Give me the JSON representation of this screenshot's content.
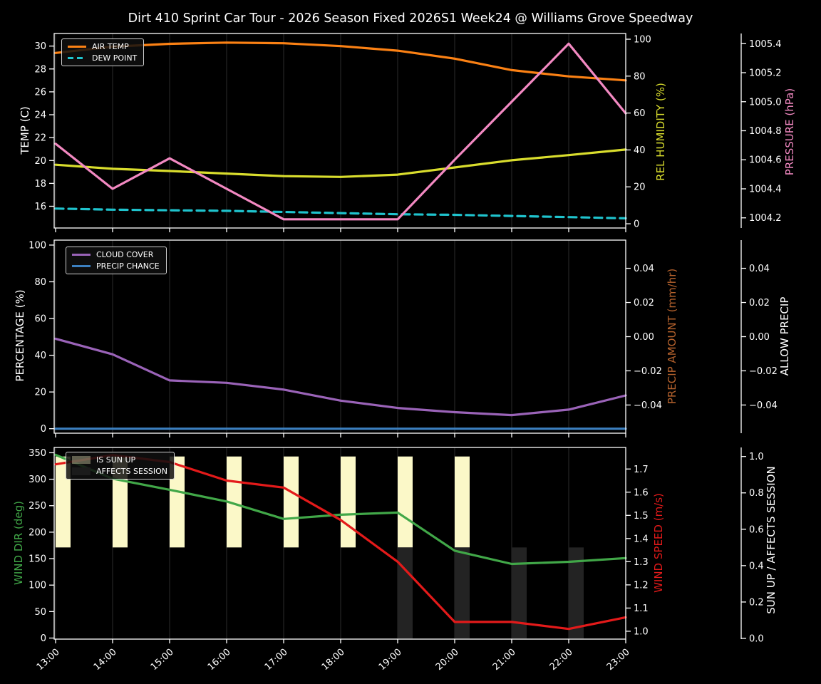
{
  "title": "Dirt 410 Sprint Car Tour - 2026 Season Fixed 2026S1 Week24 @ Williams Grove Speedway",
  "figure": {
    "bg": "#000000",
    "fg": "#ffffff",
    "grid": "#2d2d2d"
  },
  "x_axis": {
    "hours": [
      13,
      14,
      15,
      16,
      17,
      18,
      19,
      20,
      21,
      22,
      23
    ],
    "labels": [
      "13:00",
      "14:00",
      "15:00",
      "16:00",
      "17:00",
      "18:00",
      "19:00",
      "20:00",
      "21:00",
      "22:00",
      "23:00"
    ]
  },
  "chart_data": [
    {
      "type": "line",
      "panel": "temperature",
      "axes": {
        "left": {
          "label": "TEMP (C)",
          "color": "#ffffff",
          "range": [
            14.1,
            31.1
          ],
          "ticks": [
            {
              "v": 16,
              "label": "16"
            },
            {
              "v": 18,
              "label": "18"
            },
            {
              "v": 20,
              "label": "20"
            },
            {
              "v": 22,
              "label": "22"
            },
            {
              "v": 24,
              "label": "24"
            },
            {
              "v": 26,
              "label": "26"
            },
            {
              "v": 28,
              "label": "28"
            },
            {
              "v": 30,
              "label": "30"
            }
          ]
        },
        "right1": {
          "label": "REL HUMIDITY (%)",
          "color": "#d9dd2d",
          "range": [
            -2.3,
            103.1
          ],
          "ticks": [
            {
              "v": 0,
              "label": "0"
            },
            {
              "v": 20,
              "label": "20"
            },
            {
              "v": 40,
              "label": "40"
            },
            {
              "v": 60,
              "label": "60"
            },
            {
              "v": 80,
              "label": "80"
            },
            {
              "v": 100,
              "label": "100"
            }
          ]
        },
        "right2": {
          "label": "PRESSURE (hPa)",
          "color": "#f389c2",
          "range": [
            1004.13,
            1005.47
          ],
          "ticks": [
            {
              "v": 1004.2,
              "label": "1004.2"
            },
            {
              "v": 1004.4,
              "label": "1004.4"
            },
            {
              "v": 1004.6,
              "label": "1004.6"
            },
            {
              "v": 1004.8,
              "label": "1004.8"
            },
            {
              "v": 1005.0,
              "label": "1005.0"
            },
            {
              "v": 1005.2,
              "label": "1005.2"
            },
            {
              "v": 1005.4,
              "label": "1005.4"
            }
          ]
        }
      },
      "series": [
        {
          "name": "AIR TEMP",
          "axis": "left",
          "color": "#fb8114",
          "dash": false,
          "values": [
            29.4,
            29.95,
            30.2,
            30.3,
            30.25,
            30.0,
            29.6,
            28.9,
            27.9,
            27.35,
            27.0
          ]
        },
        {
          "name": "DEW POINT",
          "axis": "left",
          "color": "#1fc3cd",
          "dash": true,
          "values": [
            15.8,
            15.7,
            15.65,
            15.6,
            15.5,
            15.4,
            15.3,
            15.25,
            15.15,
            15.05,
            14.95
          ]
        },
        {
          "name": "REL HUMIDITY",
          "axis": "right1",
          "color": "#d9dd2d",
          "dash": false,
          "values": [
            32,
            29.8,
            28.6,
            27.2,
            25.8,
            25.4,
            26.6,
            30.5,
            34.4,
            37.2,
            40.2
          ]
        },
        {
          "name": "PRESSURE",
          "axis": "right2",
          "color": "#f389c2",
          "dash": false,
          "values": [
            1004.71,
            1004.4,
            1004.61,
            1004.4,
            1004.19,
            1004.19,
            1004.19,
            1004.6,
            1005.0,
            1005.4,
            1004.92
          ]
        }
      ],
      "legend": [
        {
          "label": "AIR TEMP",
          "swatch": "line",
          "color": "#fb8114"
        },
        {
          "label": "DEW POINT",
          "swatch": "dashed-line",
          "color": "#1fc3cd"
        }
      ]
    },
    {
      "type": "line",
      "panel": "percentage",
      "axes": {
        "left": {
          "label": "PERCENTAGE (%)",
          "color": "#ffffff",
          "range": [
            -2.45,
            102.7
          ],
          "ticks": [
            {
              "v": 0,
              "label": "0"
            },
            {
              "v": 20,
              "label": "20"
            },
            {
              "v": 40,
              "label": "40"
            },
            {
              "v": 60,
              "label": "60"
            },
            {
              "v": 80,
              "label": "80"
            },
            {
              "v": 100,
              "label": "100"
            }
          ]
        },
        "right1": {
          "label": "PRECIP AMOUNT (mm/hr)",
          "color": "#b5622d",
          "range": [
            -0.0565,
            0.0565
          ],
          "ticks": [
            {
              "v": -0.04,
              "label": "−0.04"
            },
            {
              "v": -0.02,
              "label": "−0.02"
            },
            {
              "v": 0,
              "label": "0.00"
            },
            {
              "v": 0.02,
              "label": "0.02"
            },
            {
              "v": 0.04,
              "label": "0.04"
            }
          ]
        },
        "right2": {
          "label": "ALLOW PRECIP",
          "color": "#ffffff",
          "range": [
            -0.0565,
            0.0565
          ],
          "ticks": [
            {
              "v": -0.04,
              "label": "−0.04"
            },
            {
              "v": -0.02,
              "label": "−0.02"
            },
            {
              "v": 0,
              "label": "0.00"
            },
            {
              "v": 0.02,
              "label": "0.02"
            },
            {
              "v": 0.04,
              "label": "0.04"
            }
          ]
        }
      },
      "series": [
        {
          "name": "CLOUD COVER",
          "axis": "left",
          "color": "#9a63b8",
          "dash": false,
          "values": [
            49,
            40.5,
            26.3,
            25.0,
            21.3,
            15.3,
            11.3,
            9.0,
            7.4,
            10.4,
            18.1
          ]
        },
        {
          "name": "PRECIP CHANCE",
          "axis": "left",
          "color": "#3c80c0",
          "dash": false,
          "values": [
            0,
            0,
            0,
            0,
            0,
            0,
            0,
            0,
            0,
            0,
            0
          ]
        }
      ],
      "legend": [
        {
          "label": "CLOUD COVER",
          "swatch": "line",
          "color": "#9a63b8"
        },
        {
          "label": "PRECIP CHANCE",
          "swatch": "line",
          "color": "#3c80c0"
        }
      ]
    },
    {
      "type": "line",
      "panel": "wind",
      "axes": {
        "left": {
          "label": "WIND DIR (deg)",
          "color": "#41a748",
          "range": [
            -2,
            360
          ],
          "ticks": [
            {
              "v": 0,
              "label": "0"
            },
            {
              "v": 50,
              "label": "50"
            },
            {
              "v": 100,
              "label": "100"
            },
            {
              "v": 150,
              "label": "150"
            },
            {
              "v": 200,
              "label": "200"
            },
            {
              "v": 250,
              "label": "250"
            },
            {
              "v": 300,
              "label": "300"
            },
            {
              "v": 350,
              "label": "350"
            }
          ]
        },
        "right1": {
          "label": "WIND SPEED (m/s)",
          "color": "#e31a1a",
          "range": [
            0.966,
            1.793
          ],
          "ticks": [
            {
              "v": 1.0,
              "label": "1.0"
            },
            {
              "v": 1.1,
              "label": "1.1"
            },
            {
              "v": 1.2,
              "label": "1.2"
            },
            {
              "v": 1.3,
              "label": "1.3"
            },
            {
              "v": 1.4,
              "label": "1.4"
            },
            {
              "v": 1.5,
              "label": "1.5"
            },
            {
              "v": 1.6,
              "label": "1.6"
            },
            {
              "v": 1.7,
              "label": "1.7"
            }
          ]
        },
        "right2": {
          "label": "SUN UP / AFFECTS SESSION",
          "color": "#ffffff",
          "range": [
            -0.004,
            1.0497
          ],
          "ticks": [
            {
              "v": 0.0,
              "label": "0.0"
            },
            {
              "v": 0.2,
              "label": "0.2"
            },
            {
              "v": 0.4,
              "label": "0.4"
            },
            {
              "v": 0.6,
              "label": "0.6"
            },
            {
              "v": 0.8,
              "label": "0.8"
            },
            {
              "v": 1.0,
              "label": "1.0"
            }
          ]
        }
      },
      "bars": [
        {
          "name": "IS SUN UP",
          "color": "#fbf8c8",
          "axis": "right2",
          "span": [
            0.5,
            1.0
          ],
          "hours": [
            13,
            14,
            15,
            16,
            17,
            18,
            19,
            20
          ]
        },
        {
          "name": "AFFECTS SESSION",
          "color": "#232323",
          "axis": "right2",
          "span": [
            0.0,
            0.5
          ],
          "hours": [
            19,
            20,
            21,
            22
          ]
        }
      ],
      "series": [
        {
          "name": "WIND DIR",
          "axis": "left",
          "color": "#41a748",
          "dash": false,
          "values": [
            346,
            301,
            280,
            258,
            225,
            233,
            237,
            165,
            140,
            144,
            151
          ]
        },
        {
          "name": "WIND SPEED",
          "axis": "right1",
          "color": "#e31a1a",
          "dash": false,
          "values": [
            1.72,
            1.76,
            1.73,
            1.65,
            1.62,
            1.48,
            1.3,
            1.04,
            1.04,
            1.01,
            1.06
          ]
        }
      ],
      "legend": [
        {
          "label": "IS SUN UP",
          "swatch": "patch",
          "color": "#fbf8c8",
          "opacity": 0.35
        },
        {
          "label": "AFFECTS SESSION",
          "swatch": "patch",
          "color": "#1b1b1b",
          "opacity": 1
        }
      ]
    }
  ]
}
